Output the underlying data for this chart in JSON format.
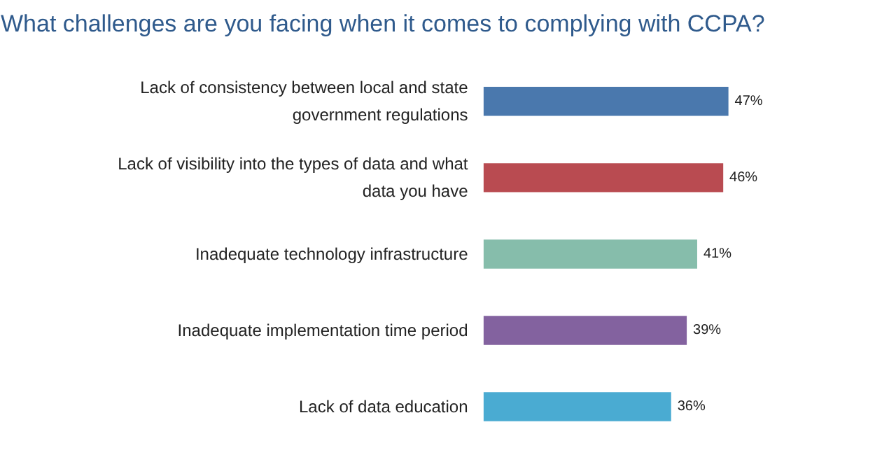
{
  "chart_data": {
    "type": "bar",
    "orientation": "horizontal",
    "title": "What challenges are you facing when it comes to complying with CCPA?",
    "categories": [
      "Lack of consistency between local and state government regulations",
      "Lack of visibility into the types of data and what data you have",
      "Inadequate technology infrastructure",
      "Inadequate implementation time period",
      "Lack of data education"
    ],
    "values": [
      47,
      46,
      41,
      39,
      36
    ],
    "colors": [
      "#4a78ad",
      "#b94b51",
      "#86bdab",
      "#83629f",
      "#4aabd2"
    ],
    "value_labels": [
      "47%",
      "46%",
      "41%",
      "39%",
      "36%"
    ]
  }
}
